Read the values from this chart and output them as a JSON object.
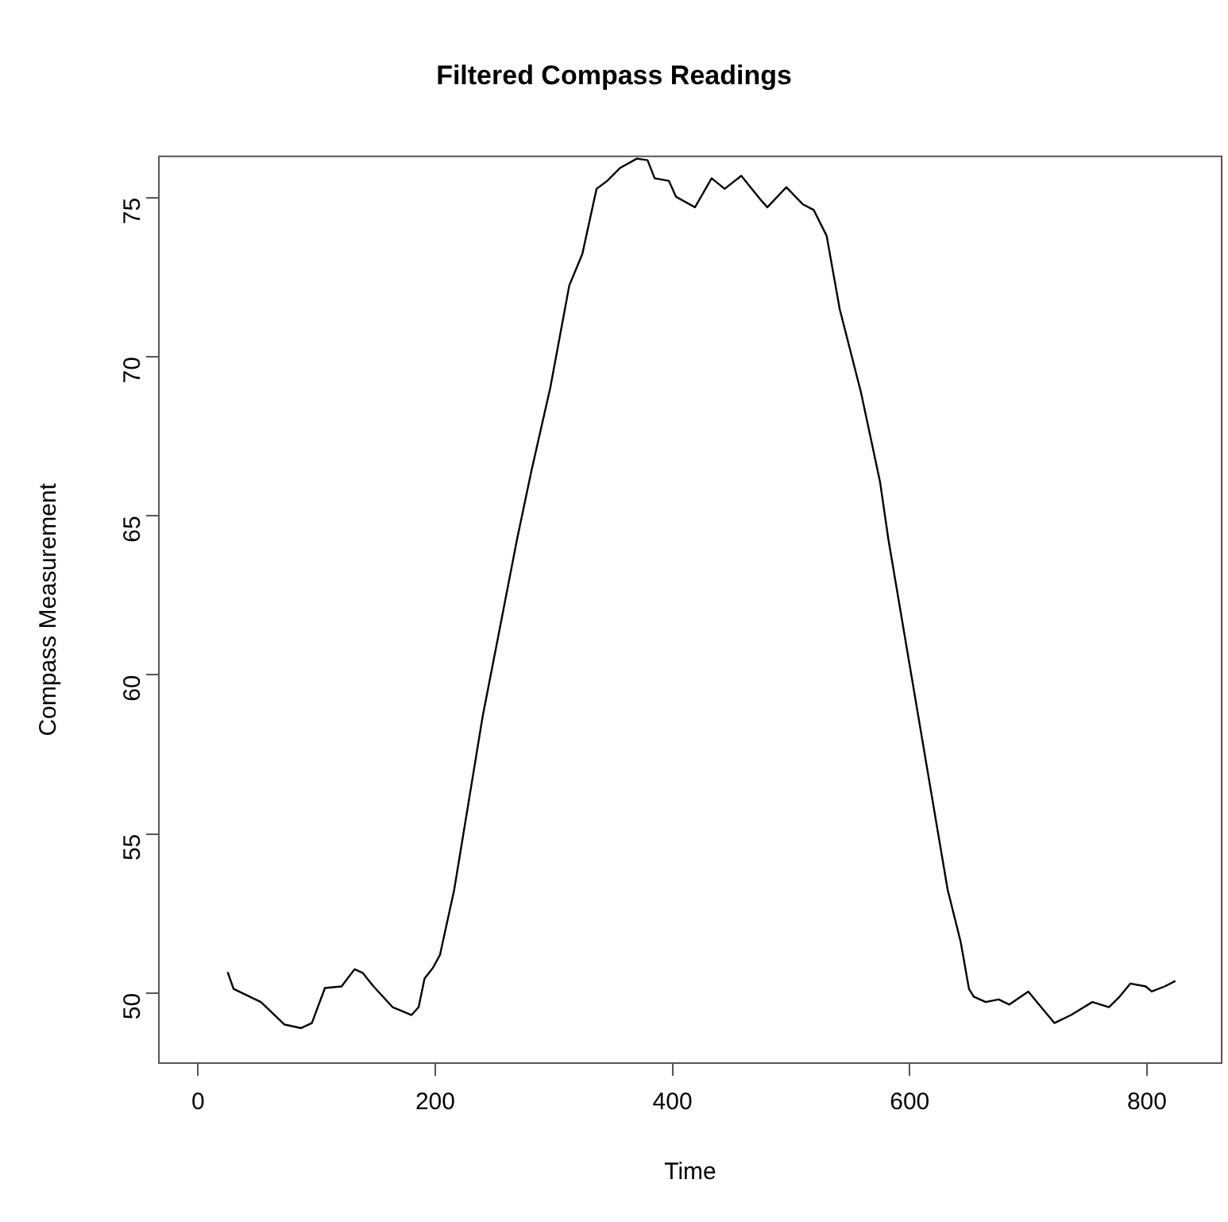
{
  "chart_data": {
    "type": "line",
    "title": "Filtered Compass Readings",
    "xlabel": "Time",
    "ylabel": "Compass Measurement",
    "x": [
      25,
      30,
      53,
      73,
      87,
      96,
      107,
      121,
      132,
      139,
      148,
      164,
      180,
      186,
      191,
      198,
      204,
      216,
      229,
      240,
      252,
      269,
      281,
      297,
      313,
      324,
      336,
      345,
      356,
      370,
      379,
      385,
      397,
      403,
      419,
      433,
      444,
      458,
      474,
      480,
      496,
      510,
      519,
      530,
      541,
      559,
      575,
      582,
      632,
      643,
      650,
      654,
      664,
      675,
      684,
      700,
      709,
      722,
      736,
      754,
      768,
      777,
      786,
      799,
      804,
      815,
      824
    ],
    "series": [
      {
        "color": "#000000",
        "values": [
          50.66,
          50.13,
          49.72,
          49.01,
          48.9,
          49.06,
          50.16,
          50.21,
          50.75,
          50.63,
          50.21,
          49.56,
          49.31,
          49.56,
          50.46,
          50.79,
          51.2,
          53.25,
          56.2,
          58.7,
          61.0,
          64.27,
          66.4,
          69.03,
          72.24,
          73.23,
          75.28,
          75.53,
          75.94,
          76.23,
          76.18,
          75.61,
          75.53,
          75.03,
          74.7,
          75.61,
          75.28,
          75.69,
          74.95,
          74.7,
          75.33,
          74.79,
          74.62,
          73.8,
          71.5,
          68.87,
          66.07,
          64.27,
          53.25,
          51.61,
          50.13,
          49.89,
          49.72,
          49.8,
          49.64,
          50.05,
          49.64,
          49.06,
          49.31,
          49.72,
          49.56,
          49.89,
          50.3,
          50.21,
          50.05,
          50.21,
          50.38
        ]
      }
    ],
    "xlim": [
      -33,
      863
    ],
    "ylim": [
      47.8,
      76.3
    ],
    "xticks": [
      0,
      200,
      400,
      600,
      800
    ],
    "yticks": [
      50,
      55,
      60,
      65,
      70,
      75
    ],
    "grid": false,
    "legend": false,
    "marker": "none",
    "line_style": "solid"
  }
}
